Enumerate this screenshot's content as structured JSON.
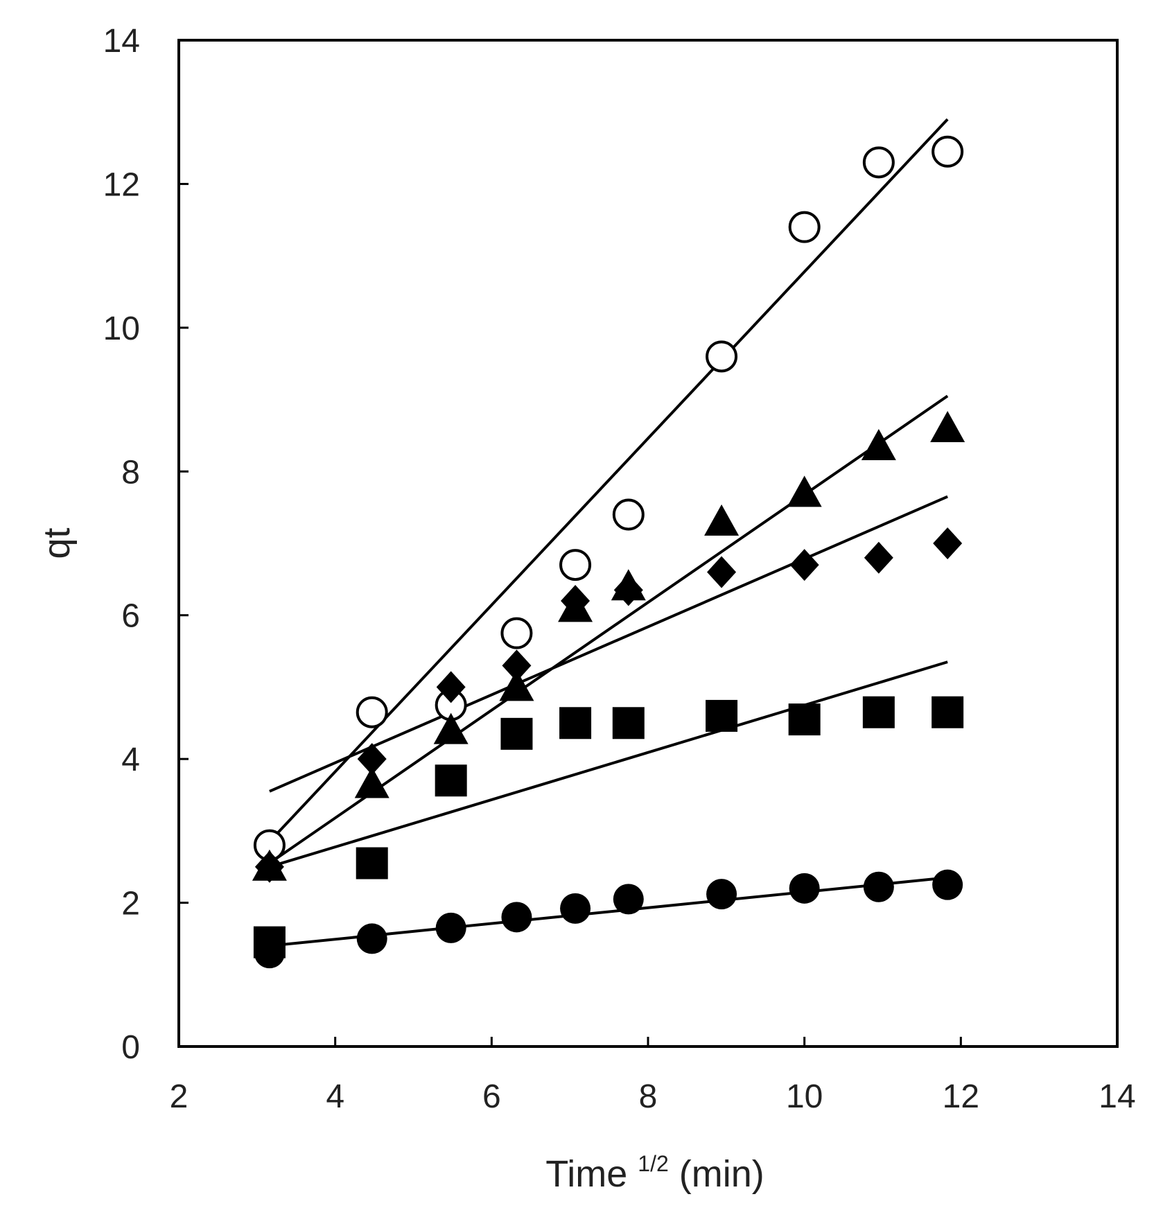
{
  "chart_data": {
    "type": "scatter",
    "title": "",
    "xlabel": "Time",
    "xlabel_superscript": "1/2",
    "xlabel_unit": "(min)",
    "ylabel": "qt",
    "xlim": [
      2,
      14
    ],
    "ylim": [
      0,
      14
    ],
    "xticks": [
      2,
      4,
      6,
      8,
      10,
      12,
      14
    ],
    "yticks": [
      0,
      2,
      4,
      6,
      8,
      10,
      12,
      14
    ],
    "grid": false,
    "x": [
      3.16,
      4.47,
      5.48,
      6.32,
      7.07,
      7.75,
      8.94,
      10.0,
      10.95,
      11.83
    ],
    "series": [
      {
        "name": "open-circle",
        "marker": "circle-open",
        "values": [
          2.8,
          4.65,
          4.75,
          5.75,
          6.7,
          7.4,
          9.6,
          11.4,
          12.3,
          12.45
        ],
        "fit": {
          "x": [
            3.16,
            11.83
          ],
          "y": [
            2.85,
            12.9
          ]
        }
      },
      {
        "name": "filled-triangle",
        "marker": "triangle",
        "values": [
          2.5,
          3.65,
          4.4,
          5.0,
          6.1,
          6.4,
          7.3,
          7.7,
          8.35,
          8.6
        ],
        "fit": {
          "x": [
            3.16,
            11.83
          ],
          "y": [
            2.55,
            9.05
          ]
        }
      },
      {
        "name": "filled-diamond",
        "marker": "diamond",
        "values": [
          2.5,
          4.0,
          5.0,
          5.3,
          6.2,
          6.35,
          6.6,
          6.7,
          6.8,
          7.0
        ],
        "fit": {
          "x": [
            3.16,
            11.83
          ],
          "y": [
            3.55,
            7.65
          ]
        }
      },
      {
        "name": "filled-square",
        "marker": "square",
        "values": [
          1.45,
          2.55,
          3.7,
          4.35,
          4.5,
          4.5,
          4.6,
          4.55,
          4.65,
          4.65
        ],
        "fit": {
          "x": [
            3.16,
            11.83
          ],
          "y": [
            2.5,
            5.35
          ]
        }
      },
      {
        "name": "filled-circle",
        "marker": "circle",
        "values": [
          1.3,
          1.5,
          1.65,
          1.8,
          1.92,
          2.05,
          2.12,
          2.2,
          2.22,
          2.25
        ],
        "fit": {
          "x": [
            3.16,
            11.83
          ],
          "y": [
            1.4,
            2.35
          ]
        }
      }
    ]
  }
}
